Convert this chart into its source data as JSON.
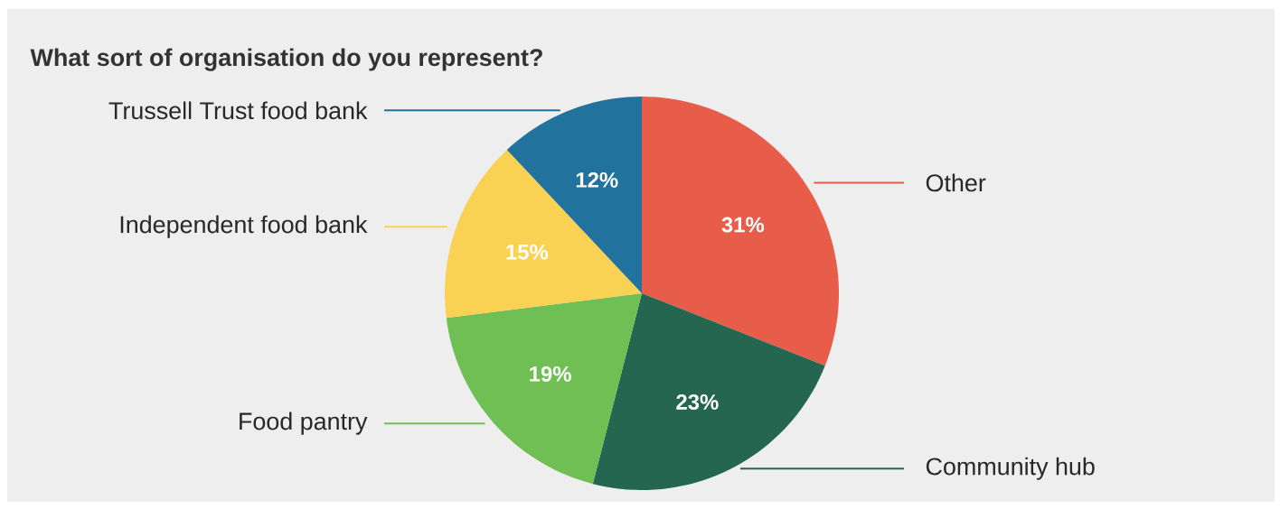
{
  "chart_data": {
    "type": "pie",
    "title": "What sort of organisation do you represent?",
    "categories": [
      "Other",
      "Community hub",
      "Food pantry",
      "Independent food bank",
      "Trussell Trust food bank"
    ],
    "values": [
      31,
      23,
      19,
      15,
      12
    ],
    "value_labels": [
      "31%",
      "23%",
      "19%",
      "15%",
      "12%"
    ],
    "colors": [
      "#e85c4a",
      "#256650",
      "#70bf54",
      "#f9d253",
      "#21739e"
    ]
  }
}
